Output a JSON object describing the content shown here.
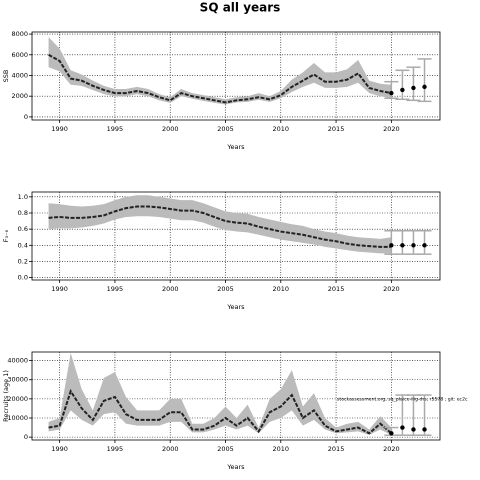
{
  "chart_data": [
    {
      "type": "line",
      "title": "SQ all years",
      "xlabel": "Years",
      "ylabel": "SSB",
      "x": [
        1989,
        1990,
        1991,
        1992,
        1993,
        1994,
        1995,
        1996,
        1997,
        1998,
        1999,
        2000,
        2001,
        2002,
        2003,
        2004,
        2005,
        2006,
        2007,
        2008,
        2009,
        2010,
        2011,
        2012,
        2013,
        2014,
        2015,
        2016,
        2017,
        2018,
        2019,
        2020
      ],
      "values": [
        6000,
        5400,
        3700,
        3500,
        3000,
        2600,
        2300,
        2300,
        2500,
        2300,
        1900,
        1600,
        2300,
        2000,
        1800,
        1600,
        1400,
        1600,
        1700,
        1900,
        1700,
        2100,
        2900,
        3500,
        4100,
        3400,
        3400,
        3600,
        4200,
        2800,
        2500,
        2300
      ],
      "lower": [
        4800,
        4400,
        3100,
        3000,
        2600,
        2200,
        2000,
        2000,
        2200,
        2000,
        1600,
        1350,
        2000,
        1750,
        1550,
        1350,
        1200,
        1400,
        1450,
        1650,
        1450,
        1800,
        2400,
        2900,
        3300,
        2800,
        2800,
        2900,
        3300,
        2300,
        2000,
        1800
      ],
      "upper": [
        7700,
        6600,
        4500,
        4100,
        3500,
        3000,
        2700,
        2700,
        2900,
        2700,
        2200,
        1900,
        2700,
        2300,
        2100,
        1900,
        1700,
        1900,
        2000,
        2300,
        2000,
        2500,
        3600,
        4300,
        5200,
        4300,
        4300,
        4600,
        5500,
        3500,
        3200,
        3100
      ],
      "projection": {
        "x": [
          2020,
          2021,
          2022,
          2023
        ],
        "values": [
          2300,
          2600,
          2800,
          2900
        ],
        "lower": [
          1800,
          1700,
          1600,
          1500
        ],
        "upper": [
          3400,
          4500,
          4800,
          5600
        ]
      },
      "xlim": [
        1987.5,
        2024.4
      ],
      "xticks": [
        1990,
        1995,
        2000,
        2005,
        2010,
        2015,
        2020
      ],
      "ylim": [
        -300,
        8200
      ],
      "yticks": [
        0,
        2000,
        4000,
        6000,
        8000
      ],
      "grid": true,
      "line_color": "#222222",
      "band_color": "#bbbbbb",
      "bar_color": "#aaaaaa"
    },
    {
      "type": "line",
      "xlabel": "Years",
      "ylabel": "F₃₋₆",
      "x": [
        1989,
        1990,
        1991,
        1992,
        1993,
        1994,
        1995,
        1996,
        1997,
        1998,
        1999,
        2000,
        2001,
        2002,
        2003,
        2004,
        2005,
        2006,
        2007,
        2008,
        2009,
        2010,
        2011,
        2012,
        2013,
        2014,
        2015,
        2016,
        2017,
        2018,
        2019,
        2020
      ],
      "values": [
        0.74,
        0.75,
        0.74,
        0.74,
        0.75,
        0.77,
        0.82,
        0.86,
        0.88,
        0.88,
        0.87,
        0.85,
        0.83,
        0.83,
        0.8,
        0.75,
        0.7,
        0.68,
        0.67,
        0.63,
        0.6,
        0.57,
        0.55,
        0.53,
        0.5,
        0.47,
        0.45,
        0.42,
        0.4,
        0.39,
        0.38,
        0.38
      ],
      "lower": [
        0.6,
        0.61,
        0.61,
        0.62,
        0.64,
        0.67,
        0.72,
        0.75,
        0.76,
        0.76,
        0.75,
        0.73,
        0.71,
        0.71,
        0.68,
        0.63,
        0.59,
        0.57,
        0.56,
        0.53,
        0.5,
        0.47,
        0.45,
        0.43,
        0.41,
        0.38,
        0.36,
        0.34,
        0.32,
        0.31,
        0.3,
        0.3
      ],
      "upper": [
        0.92,
        0.91,
        0.89,
        0.88,
        0.89,
        0.91,
        0.96,
        1.0,
        1.02,
        1.02,
        1.0,
        0.98,
        0.96,
        0.96,
        0.92,
        0.87,
        0.82,
        0.8,
        0.79,
        0.75,
        0.72,
        0.69,
        0.66,
        0.64,
        0.6,
        0.57,
        0.55,
        0.52,
        0.5,
        0.49,
        0.48,
        0.5
      ],
      "projection": {
        "x": [
          2020,
          2021,
          2022,
          2023
        ],
        "values": [
          0.4,
          0.4,
          0.4,
          0.4
        ],
        "lower": [
          0.29,
          0.29,
          0.29,
          0.29
        ],
        "upper": [
          0.58,
          0.58,
          0.58,
          0.58
        ]
      },
      "xlim": [
        1987.5,
        2024.4
      ],
      "xticks": [
        1990,
        1995,
        2000,
        2005,
        2010,
        2015,
        2020
      ],
      "ylim": [
        -0.03,
        1.06
      ],
      "yticks": [
        {
          "value": 0,
          "label": "0.0"
        },
        0.2,
        0.4,
        0.6,
        0.8,
        {
          "value": 1,
          "label": "1.0"
        }
      ],
      "grid": true,
      "line_color": "#222222",
      "band_color": "#bbbbbb",
      "bar_color": "#aaaaaa"
    },
    {
      "type": "line",
      "xlabel": "Years",
      "ylabel": "Recruits (age 1)",
      "annotation": "stockassessment.org, sq_plaice-iiig-drs, r5578 ; git: ec2c",
      "x": [
        1989,
        1990,
        1991,
        1992,
        1993,
        1994,
        1995,
        1996,
        1997,
        1998,
        1999,
        2000,
        2001,
        2002,
        2003,
        2004,
        2005,
        2006,
        2007,
        2008,
        2009,
        2010,
        2011,
        2012,
        2013,
        2014,
        2015,
        2016,
        2017,
        2018,
        2019,
        2020
      ],
      "values": [
        5000,
        6000,
        24000,
        15000,
        9000,
        19000,
        21000,
        12000,
        9000,
        9000,
        9000,
        13000,
        13000,
        4000,
        4000,
        6000,
        10000,
        6000,
        10000,
        3000,
        13000,
        16000,
        22000,
        10000,
        14000,
        6000,
        3000,
        4000,
        5000,
        2000,
        7000,
        2000
      ],
      "lower": [
        3000,
        4000,
        14000,
        9000,
        6000,
        12000,
        13000,
        7000,
        6000,
        6000,
        6000,
        8000,
        8000,
        2500,
        2500,
        4000,
        6000,
        4000,
        6000,
        2000,
        8000,
        10000,
        14000,
        6000,
        9000,
        4000,
        2000,
        2500,
        3000,
        1200,
        4000,
        1000
      ],
      "upper": [
        8000,
        10000,
        44000,
        25000,
        14000,
        31000,
        34000,
        21000,
        14000,
        14000,
        14000,
        20000,
        20000,
        7000,
        7000,
        10000,
        16000,
        10000,
        17000,
        5000,
        20000,
        25000,
        35000,
        16000,
        23000,
        10000,
        5000,
        7000,
        8000,
        4000,
        11000,
        5000
      ],
      "projection": {
        "x": [
          2020,
          2021,
          2022,
          2023
        ],
        "values": [
          2000,
          5000,
          4000,
          4000
        ],
        "lower": [
          1000,
          1000,
          1000,
          1000
        ],
        "upper": [
          5000,
          22000,
          22000,
          22000
        ]
      },
      "xlim": [
        1987.5,
        2024.4
      ],
      "xticks": [
        1990,
        1995,
        2000,
        2005,
        2010,
        2015,
        2020
      ],
      "ylim": [
        -1500,
        44500
      ],
      "yticks": [
        0,
        10000,
        20000,
        30000,
        40000
      ],
      "grid": true,
      "line_color": "#222222",
      "band_color": "#bbbbbb",
      "bar_color": "#aaaaaa"
    }
  ]
}
